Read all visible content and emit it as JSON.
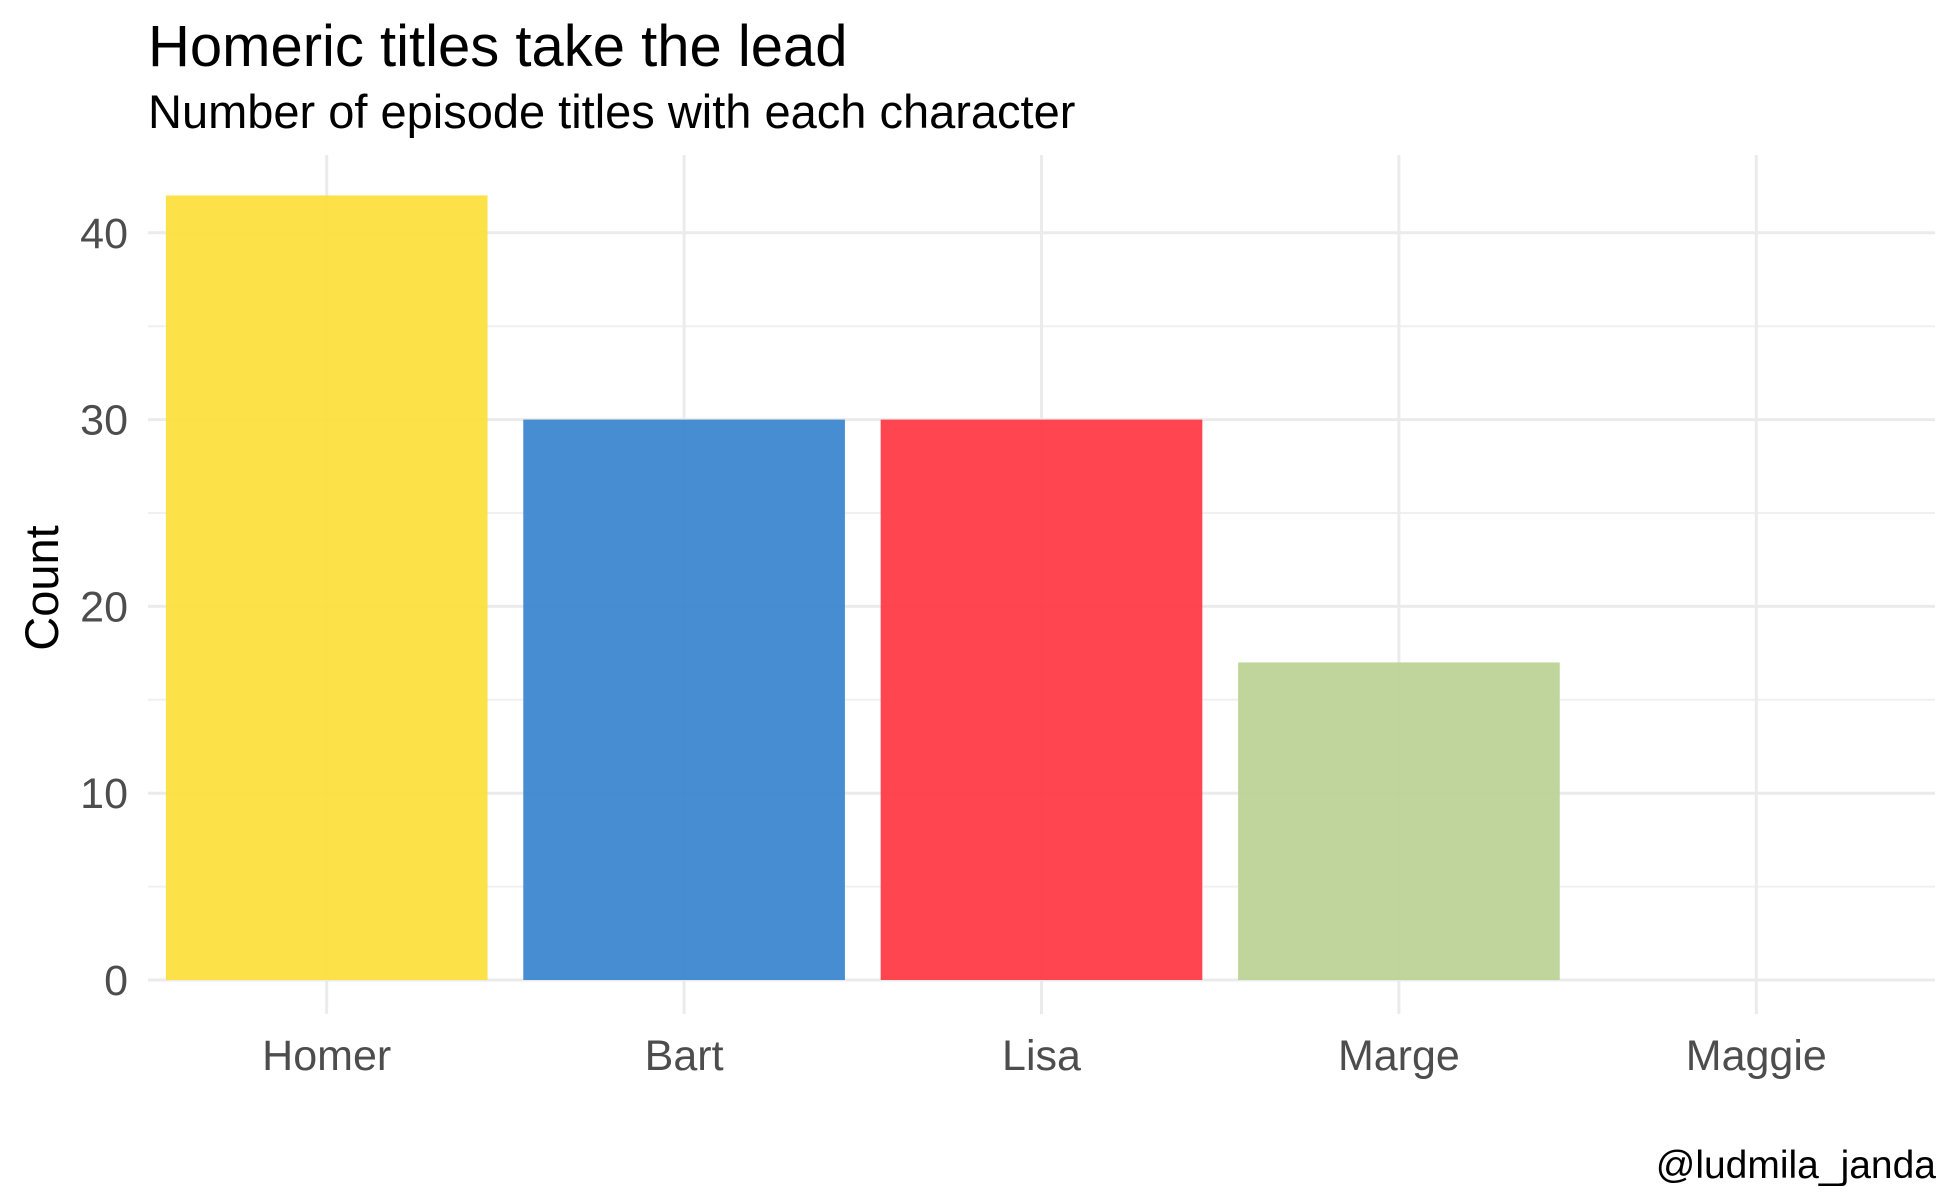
{
  "chart_data": {
    "type": "bar",
    "title": "Homeric titles take the lead",
    "subtitle": "Number of episode titles with each character",
    "xlabel": "",
    "ylabel": "Count",
    "caption": "@ludmila_janda",
    "categories": [
      "Homer",
      "Bart",
      "Lisa",
      "Marge",
      "Maggie"
    ],
    "values": [
      42,
      30,
      30,
      17,
      0
    ],
    "colors": [
      "#fcdf3f",
      "#3d87d0",
      "#ff3b46",
      "#bcd396",
      "#ffffff"
    ],
    "ylim": [
      0,
      44
    ],
    "yticks": [
      0,
      10,
      20,
      30,
      40
    ],
    "grid": true,
    "legend": "none"
  }
}
